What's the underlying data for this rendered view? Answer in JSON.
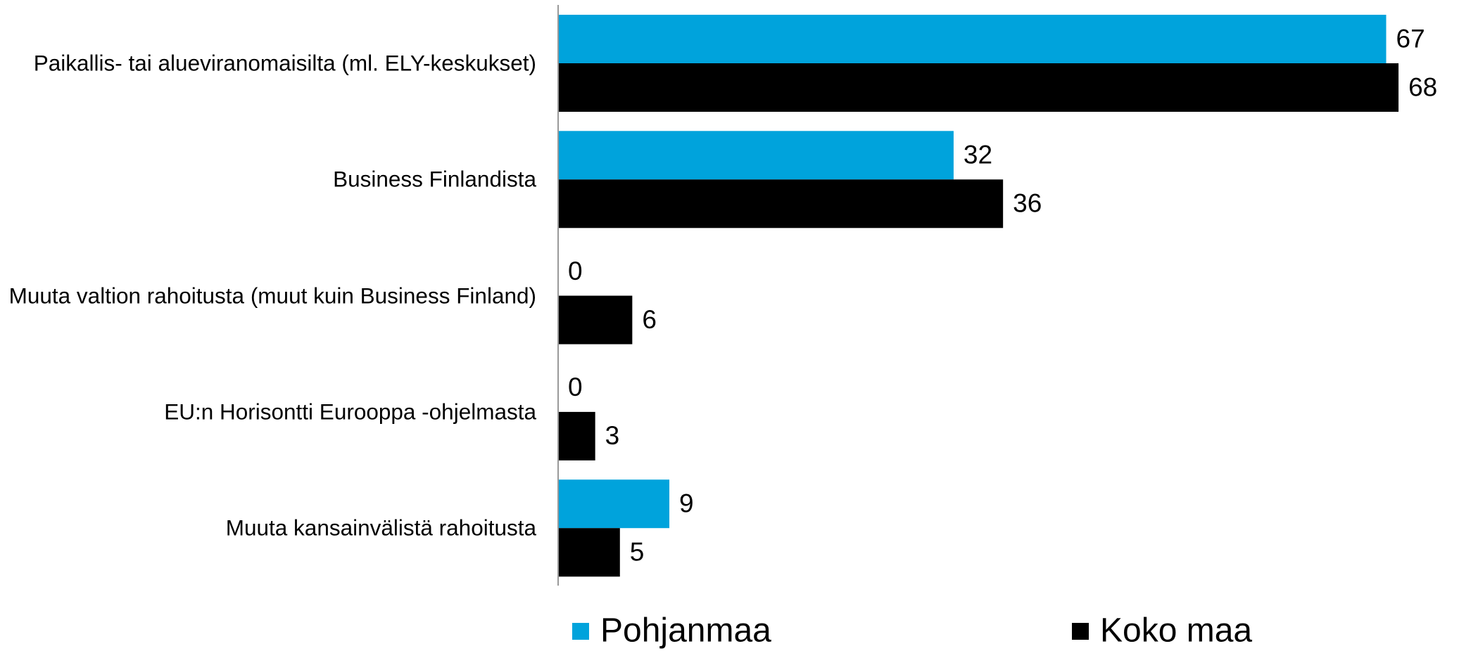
{
  "chart_data": {
    "type": "barh",
    "categories": [
      "Paikallis- tai alueviranomaisilta (ml. ELY-keskukset)",
      "Business Finlandista",
      "Muuta valtion rahoitusta (muut kuin Business Finland)",
      "EU:n Horisontti Eurooppa -ohjelmasta",
      "Muuta kansainvälistä rahoitusta"
    ],
    "series": [
      {
        "name": "Pohjanmaa",
        "color": "#00a3dc",
        "values": [
          67,
          32,
          0,
          0,
          9
        ]
      },
      {
        "name": "Koko maa",
        "color": "#000000",
        "values": [
          68,
          36,
          6,
          3,
          5
        ]
      }
    ],
    "xlim": [
      0,
      70
    ]
  }
}
